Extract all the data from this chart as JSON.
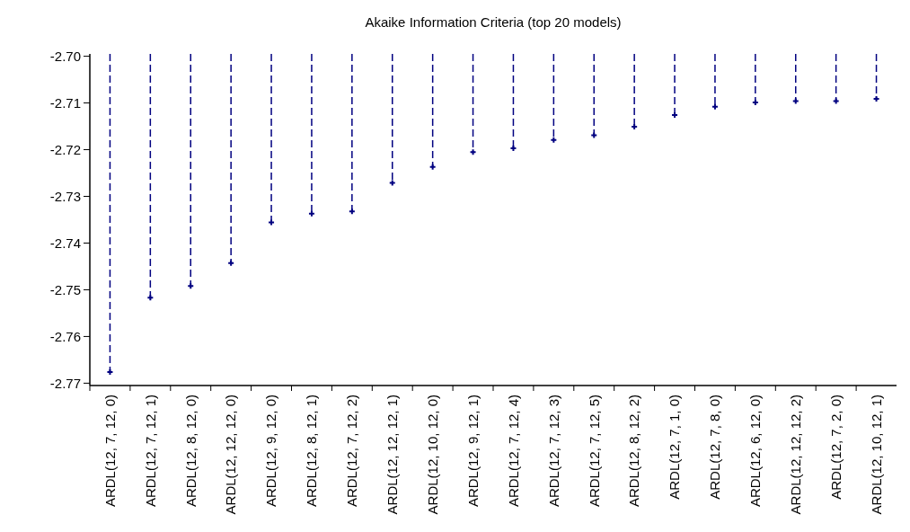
{
  "chart_data": {
    "type": "lollipop",
    "title": "Akaike Information Criteria (top 20 models)",
    "categories": [
      "ARDL(12, 7, 12, 0)",
      "ARDL(12, 7, 12, 1)",
      "ARDL(12, 8, 12, 0)",
      "ARDL(12, 12, 12, 0)",
      "ARDL(12, 9, 12, 0)",
      "ARDL(12, 8, 12, 1)",
      "ARDL(12, 7, 12, 2)",
      "ARDL(12, 12, 12, 1)",
      "ARDL(12, 10, 12, 0)",
      "ARDL(12, 9, 12, 1)",
      "ARDL(12, 7, 12, 4)",
      "ARDL(12, 7, 12, 3)",
      "ARDL(12, 7, 12, 5)",
      "ARDL(12, 8, 12, 2)",
      "ARDL(12, 7, 1, 0)",
      "ARDL(12, 7, 8, 0)",
      "ARDL(12, 6, 12, 0)",
      "ARDL(12, 12, 12, 2)",
      "ARDL(12, 7, 2, 0)",
      "ARDL(12, 10, 12, 1)"
    ],
    "values": [
      -2.7676,
      -2.7517,
      -2.7492,
      -2.7443,
      -2.7356,
      -2.7337,
      -2.7332,
      -2.7271,
      -2.7237,
      -2.7205,
      -2.7197,
      -2.7179,
      -2.7169,
      -2.7151,
      -2.7126,
      -2.7108,
      -2.7099,
      -2.7096,
      -2.7096,
      -2.7091
    ],
    "color": "#000080",
    "ylim": [
      -2.7705,
      -2.6995
    ],
    "yticks": [
      {
        "value": -2.77,
        "label": "-2.77"
      },
      {
        "value": -2.76,
        "label": "-2.76"
      },
      {
        "value": -2.75,
        "label": "-2.75"
      },
      {
        "value": -2.74,
        "label": "-2.74"
      },
      {
        "value": -2.73,
        "label": "-2.73"
      },
      {
        "value": -2.72,
        "label": "-2.72"
      },
      {
        "value": -2.71,
        "label": "-2.71"
      },
      {
        "value": -2.7,
        "label": "-2.70"
      }
    ],
    "line_style": "dashed",
    "marker": "cross"
  }
}
